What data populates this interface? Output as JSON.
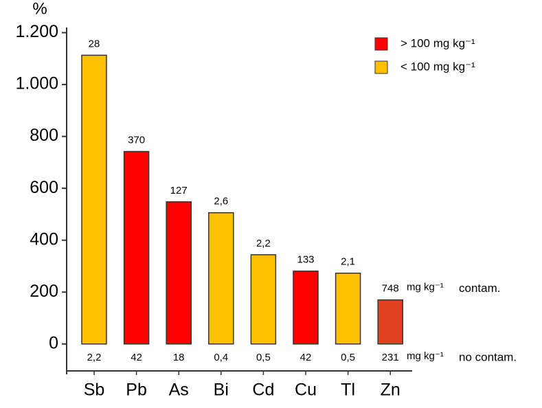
{
  "chart_data": {
    "type": "bar",
    "y_label": "%",
    "categories": [
      "Sb",
      "Pb",
      "As",
      "Bi",
      "Cd",
      "Cu",
      "Tl",
      "Zn"
    ],
    "values": [
      1113,
      742,
      548,
      506,
      344,
      281,
      273,
      170
    ],
    "colors": [
      "#ffc000",
      "#ff0000",
      "#ff0000",
      "#ffc000",
      "#ffc000",
      "#ff0000",
      "#ffc000",
      "#e0401f"
    ],
    "top_labels": [
      "28",
      "370",
      "127",
      "2,6",
      "2,2",
      "133",
      "2,1",
      "748"
    ],
    "bottom_labels": [
      "2,2",
      "42",
      "18",
      "0,4",
      "0,5",
      "42",
      "0,5",
      "231"
    ],
    "top_unit": "mg kg⁻¹",
    "top_note": "contam.",
    "bottom_unit": "mg kg⁻¹",
    "bottom_note": "no contam.",
    "legend": [
      {
        "label": "> 100 mg kg⁻¹",
        "color": "#ff0000"
      },
      {
        "label": "< 100 mg kg⁻¹",
        "color": "#ffc000"
      }
    ],
    "ylim": [
      -117,
      1220
    ],
    "yticks": [
      0,
      200,
      400,
      600,
      800,
      {
        "value": 1000,
        "label": "1.000"
      },
      {
        "value": 1200,
        "label": "1.200"
      }
    ]
  }
}
